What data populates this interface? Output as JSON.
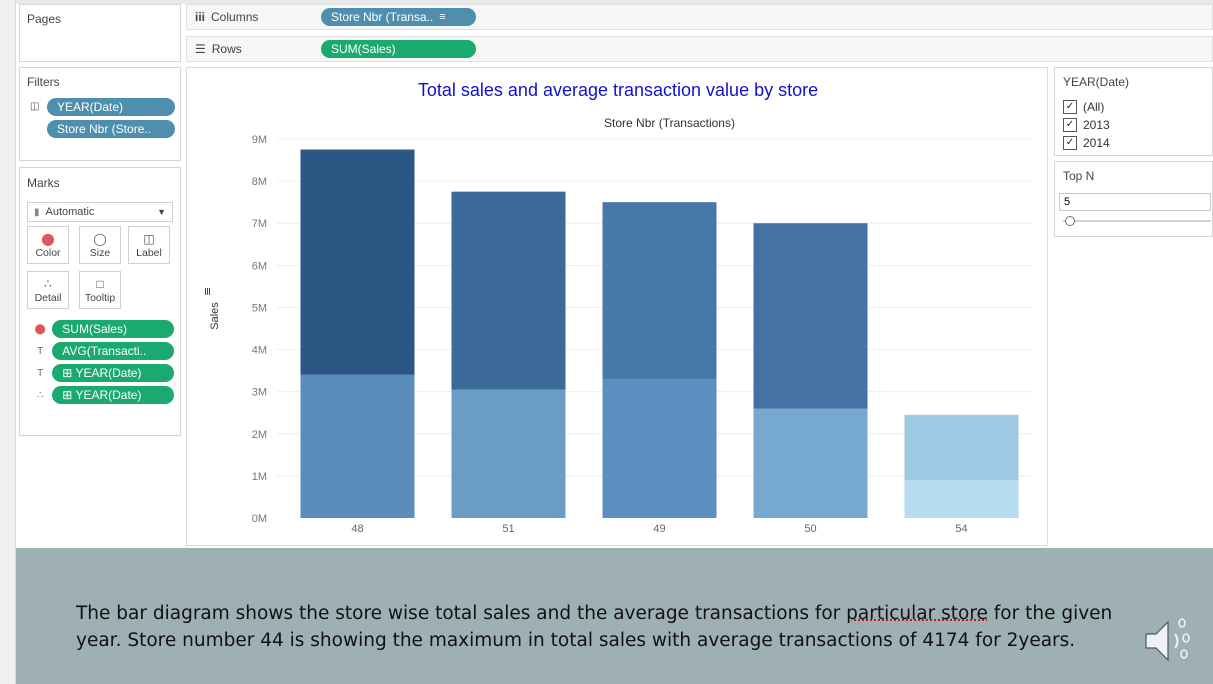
{
  "shelves": {
    "pages_label": "Pages",
    "columns_label": "Columns",
    "columns_pill": "Store Nbr (Transa..",
    "rows_label": "Rows",
    "rows_pill": "SUM(Sales)"
  },
  "filters": {
    "title": "Filters",
    "items": [
      "YEAR(Date)",
      "Store Nbr (Store.."
    ]
  },
  "marks": {
    "title": "Marks",
    "type": "Automatic",
    "buttons": [
      "Color",
      "Size",
      "Label",
      "Detail",
      "Tooltip"
    ],
    "fields": [
      {
        "label": "SUM(Sales)",
        "icon": "color-icon"
      },
      {
        "label": "AVG(Transacti..",
        "icon": "label-icon"
      },
      {
        "label": "⊞ YEAR(Date)",
        "icon": "label-icon"
      },
      {
        "label": "⊞ YEAR(Date)",
        "icon": "detail-icon"
      }
    ]
  },
  "year_filter": {
    "title": "YEAR(Date)",
    "options": [
      {
        "label": "(All)",
        "checked": true
      },
      {
        "label": "2013",
        "checked": true
      },
      {
        "label": "2014",
        "checked": true
      }
    ]
  },
  "topn": {
    "title": "Top N",
    "value": "5"
  },
  "chart_data": {
    "type": "bar",
    "stacked": true,
    "title": "Total sales and average transaction value by store",
    "xlabel": "Store Nbr (Transactions)",
    "ylabel": "Sales",
    "categories": [
      "48",
      "51",
      "49",
      "50",
      "54"
    ],
    "ylim": [
      0,
      9000000
    ],
    "yticks": [
      "0M",
      "1M",
      "2M",
      "3M",
      "4M",
      "5M",
      "6M",
      "7M",
      "8M",
      "9M"
    ],
    "segments": [
      {
        "values": [
          3400000,
          3050000,
          3300000,
          2600000,
          900000
        ],
        "colors": [
          "#5b8dbc",
          "#6a9cc6",
          "#5b8fbf",
          "#77a8d0",
          "#b6dcef"
        ]
      },
      {
        "values": [
          5350000,
          4700000,
          4200000,
          4400000,
          1550000
        ],
        "colors": [
          "#2a5783",
          "#3b6a99",
          "#4779a8",
          "#4372a3",
          "#9ec9e2"
        ]
      }
    ]
  },
  "caption": {
    "before": "The bar diagram shows the store wise total sales and the average transactions for ",
    "underlined": "particular store",
    "after": " for the given year. Store number 44 is showing the maximum in total sales with average transactions of 4174 for 2years."
  },
  "colors": {
    "pill_blue": "#4e8fae",
    "pill_green": "#1aa96f",
    "title_blue": "#1111cc",
    "caption_bg": "#9fb0b4"
  }
}
